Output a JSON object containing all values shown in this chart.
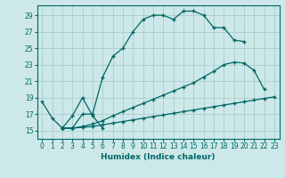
{
  "xlabel": "Humidex (Indice chaleur)",
  "xlim": [
    -0.5,
    23.5
  ],
  "ylim": [
    14.0,
    30.2
  ],
  "yticks": [
    15,
    17,
    19,
    21,
    23,
    25,
    27,
    29
  ],
  "xticks": [
    0,
    1,
    2,
    3,
    4,
    5,
    6,
    7,
    8,
    9,
    10,
    11,
    12,
    13,
    14,
    15,
    16,
    17,
    18,
    19,
    20,
    21,
    22,
    23
  ],
  "bg_color": "#cde8e8",
  "grid_color": "#b0d0d0",
  "line_color": "#006666",
  "lines": [
    {
      "x": [
        0,
        1,
        2,
        3,
        4,
        5,
        6
      ],
      "y": [
        18.5,
        16.5,
        15.3,
        16.8,
        19.0,
        16.8,
        15.3
      ]
    },
    {
      "x": [
        2,
        3,
        4,
        5,
        6,
        7,
        8,
        9,
        10,
        11,
        12,
        13,
        14,
        15,
        16,
        17,
        18,
        19,
        20
      ],
      "y": [
        15.3,
        15.3,
        17.0,
        17.0,
        21.5,
        24.0,
        25.0,
        27.0,
        28.5,
        29.0,
        29.0,
        28.5,
        29.5,
        29.5,
        29.0,
        27.5,
        27.5,
        26.0,
        25.8
      ]
    },
    {
      "x": [
        2,
        3,
        4,
        5,
        6,
        7,
        8,
        9,
        10,
        11,
        12,
        13,
        14,
        15,
        16,
        17,
        18,
        19,
        20,
        21,
        22
      ],
      "y": [
        15.3,
        15.3,
        15.5,
        15.8,
        16.2,
        16.8,
        17.3,
        17.8,
        18.3,
        18.8,
        19.3,
        19.8,
        20.3,
        20.8,
        21.5,
        22.2,
        23.0,
        23.3,
        23.2,
        22.3,
        20.0
      ]
    },
    {
      "x": [
        2,
        3,
        4,
        5,
        6,
        7,
        8,
        9,
        10,
        11,
        12,
        13,
        14,
        15,
        16,
        17,
        18,
        19,
        20,
        21,
        22,
        23
      ],
      "y": [
        15.3,
        15.3,
        15.4,
        15.5,
        15.7,
        15.9,
        16.1,
        16.3,
        16.5,
        16.7,
        16.9,
        17.1,
        17.3,
        17.5,
        17.7,
        17.9,
        18.1,
        18.3,
        18.5,
        18.7,
        18.9,
        19.1
      ]
    }
  ]
}
